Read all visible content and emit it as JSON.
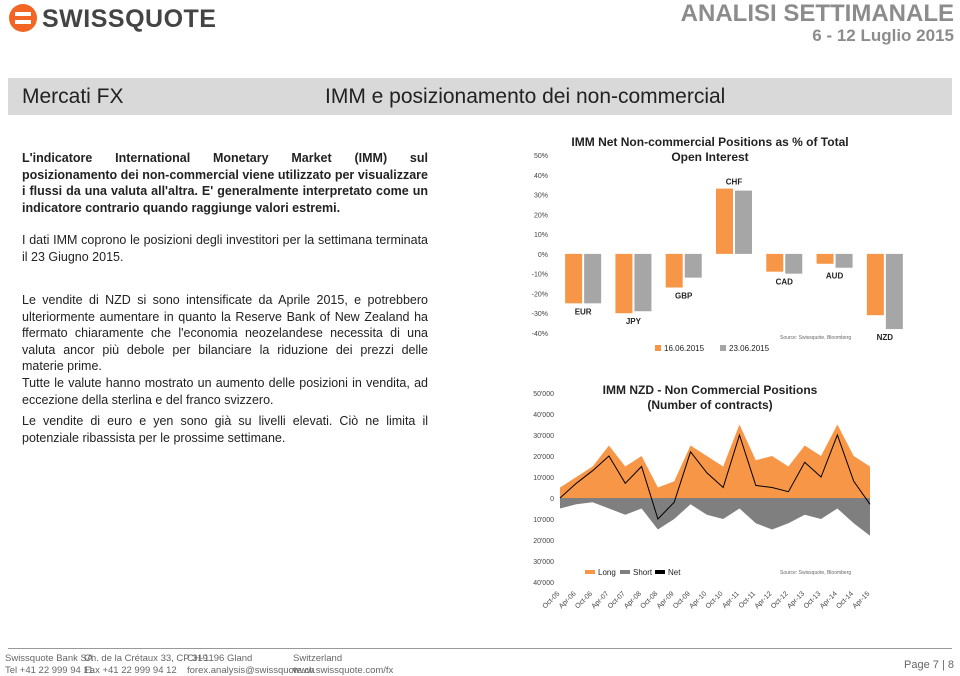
{
  "header": {
    "logo": "SWISSQUOTE",
    "title": "ANALISI SETTIMANALE",
    "date": "6 - 12 Luglio 2015"
  },
  "section": {
    "left": "Mercati FX",
    "right": "IMM e posizionamento dei non-commercial"
  },
  "paragraphs": [
    "L'indicatore International Monetary Market (IMM) sul posizionamento dei non-commercial viene utilizzato per visualizzare i flussi da una valuta all'altra. E' generalmente interpretato come un indicatore contrario quando raggiunge valori estremi.",
    "I dati IMM coprono le posizioni degli investitori per la settimana terminata il 23 Giugno 2015.",
    "Le vendite di NZD si sono intensificate da Aprile 2015, e potrebbero ulteriormente aumentare in quanto la Reserve Bank of New Zealand ha ffermato chiaramente che l'economia neozelandese necessita di una valuta ancor più debole per bilanciare la riduzione dei prezzi delle materie prime.",
    "Tutte le valute hanno mostrato un aumento delle posizioni in vendita, ad eccezione della sterlina e del franco svizzero.",
    "Le vendite di euro e yen sono già su livelli elevati. Ciò ne limita il potenziale ribassista per le prossime settimane."
  ],
  "chart_data": [
    {
      "type": "bar",
      "title": "IMM Net Non-commercial Positions as % of Total Open Interest",
      "source": "Source: Swissquote, Bloomberg",
      "categories": [
        "EUR",
        "JPY",
        "GBP",
        "CHF",
        "CAD",
        "AUD",
        "NZD"
      ],
      "series": [
        {
          "name": "16.06.2015",
          "color": "#f79646",
          "values": [
            -25,
            -30,
            -17,
            33,
            -9,
            -5,
            -31
          ]
        },
        {
          "name": "23.06.2015",
          "color": "#a6a6a6",
          "values": [
            -25,
            -29,
            -12,
            32,
            -10,
            -7,
            -38
          ]
        }
      ],
      "ylim": [
        -40,
        50
      ],
      "yticks": [
        {
          "value": -40,
          "label": "-40%"
        },
        {
          "value": -30,
          "label": "-30%"
        },
        {
          "value": -20,
          "label": "-20%"
        },
        {
          "value": -10,
          "label": "-10%"
        },
        {
          "value": 0,
          "label": "0%"
        },
        {
          "value": 10,
          "label": "10%"
        },
        {
          "value": 20,
          "label": "20%"
        },
        {
          "value": 30,
          "label": "30%"
        },
        {
          "value": 40,
          "label": "40%"
        },
        {
          "value": 50,
          "label": "50%"
        }
      ]
    },
    {
      "type": "area",
      "title": "IMM NZD - Non Commercial Positions",
      "subtitle": "(Number of contracts)",
      "source": "Source: Swissquote, Bloomberg",
      "categories": [
        "Oct-05",
        "Apr-06",
        "Oct-06",
        "Apr-07",
        "Oct-07",
        "Apr-08",
        "Oct-08",
        "Apr-09",
        "Oct-09",
        "Apr-10",
        "Oct-10",
        "Apr-11",
        "Oct-11",
        "Apr-12",
        "Oct-12",
        "Apr-13",
        "Oct-13",
        "Apr-14",
        "Oct-14",
        "Apr-15"
      ],
      "series": [
        {
          "name": "Long",
          "color": "#f79646",
          "values": [
            5000,
            10000,
            15000,
            25000,
            15000,
            20000,
            5000,
            8000,
            25000,
            20000,
            15000,
            35000,
            18000,
            20000,
            15000,
            25000,
            20000,
            35000,
            20000,
            15000
          ]
        },
        {
          "name": "Short",
          "color": "#7f7f7f",
          "values": [
            -5000,
            -3000,
            -2000,
            -5000,
            -8000,
            -5000,
            -15000,
            -10000,
            -3000,
            -8000,
            -10000,
            -5000,
            -12000,
            -15000,
            -12000,
            -8000,
            -10000,
            -5000,
            -12000,
            -18000
          ]
        },
        {
          "name": "Net",
          "color": "#000000",
          "values": [
            0,
            7000,
            13000,
            20000,
            7000,
            15000,
            -10000,
            -2000,
            22000,
            12000,
            5000,
            30000,
            6000,
            5000,
            3000,
            17000,
            10000,
            30000,
            8000,
            -3000
          ]
        }
      ],
      "ylim": [
        -40000,
        50000
      ],
      "yticks": [
        {
          "value": -40000,
          "label": "40'000"
        },
        {
          "value": -30000,
          "label": "30'000"
        },
        {
          "value": -20000,
          "label": "20'000"
        },
        {
          "value": -10000,
          "label": "10'000"
        },
        0,
        {
          "value": 10000,
          "label": "10'000"
        },
        {
          "value": 20000,
          "label": "20'000"
        },
        {
          "value": 30000,
          "label": "30'000"
        },
        {
          "value": 40000,
          "label": "40'000"
        },
        {
          "value": 50000,
          "label": "50'000"
        }
      ]
    }
  ],
  "footer": {
    "columns": [
      [
        "Swissquote Bank SA",
        "Tel +41 22 999 94 11"
      ],
      [
        "Ch. de la Crétaux 33, CP 319",
        "Fax +41 22 999 94 12"
      ],
      [
        "CH-1196 Gland",
        "forex.analysis@swissquote.ch"
      ],
      [
        "Switzerland",
        "www.swissquote.com/fx"
      ]
    ],
    "page": "Page 7 | 8"
  }
}
